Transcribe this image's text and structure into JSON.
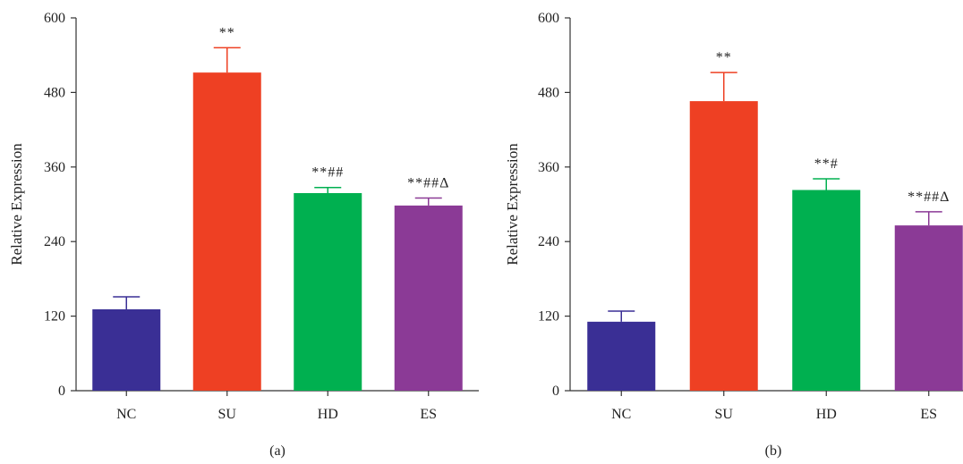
{
  "chart_data": [
    {
      "type": "bar",
      "panel_label": "(a)",
      "categories": [
        "NC",
        "SU",
        "HD",
        "ES"
      ],
      "values": [
        131,
        512,
        318,
        298
      ],
      "errors": [
        20,
        40,
        9,
        12
      ],
      "annotations": [
        "",
        "**",
        "**##",
        "**##Δ"
      ],
      "colors": [
        "#3a2f95",
        "#ee4023",
        "#00b050",
        "#8b3a96"
      ],
      "xlabel": "",
      "ylabel": "Relative Expression",
      "ylim": [
        0,
        600
      ],
      "yticks": [
        "0",
        "120",
        "240",
        "360",
        "480",
        "600"
      ],
      "grid": false
    },
    {
      "type": "bar",
      "panel_label": "(b)",
      "categories": [
        "NC",
        "SU",
        "HD",
        "ES"
      ],
      "values": [
        111,
        466,
        323,
        266
      ],
      "errors": [
        17,
        46,
        18,
        22
      ],
      "annotations": [
        "",
        "**",
        "**#",
        "**##Δ"
      ],
      "colors": [
        "#3a2f95",
        "#ee4023",
        "#00b050",
        "#8b3a96"
      ],
      "xlabel": "",
      "ylabel": "Relative Expression",
      "ylim": [
        0,
        600
      ],
      "yticks": [
        "0",
        "120",
        "240",
        "360",
        "480",
        "600"
      ],
      "grid": false
    }
  ]
}
